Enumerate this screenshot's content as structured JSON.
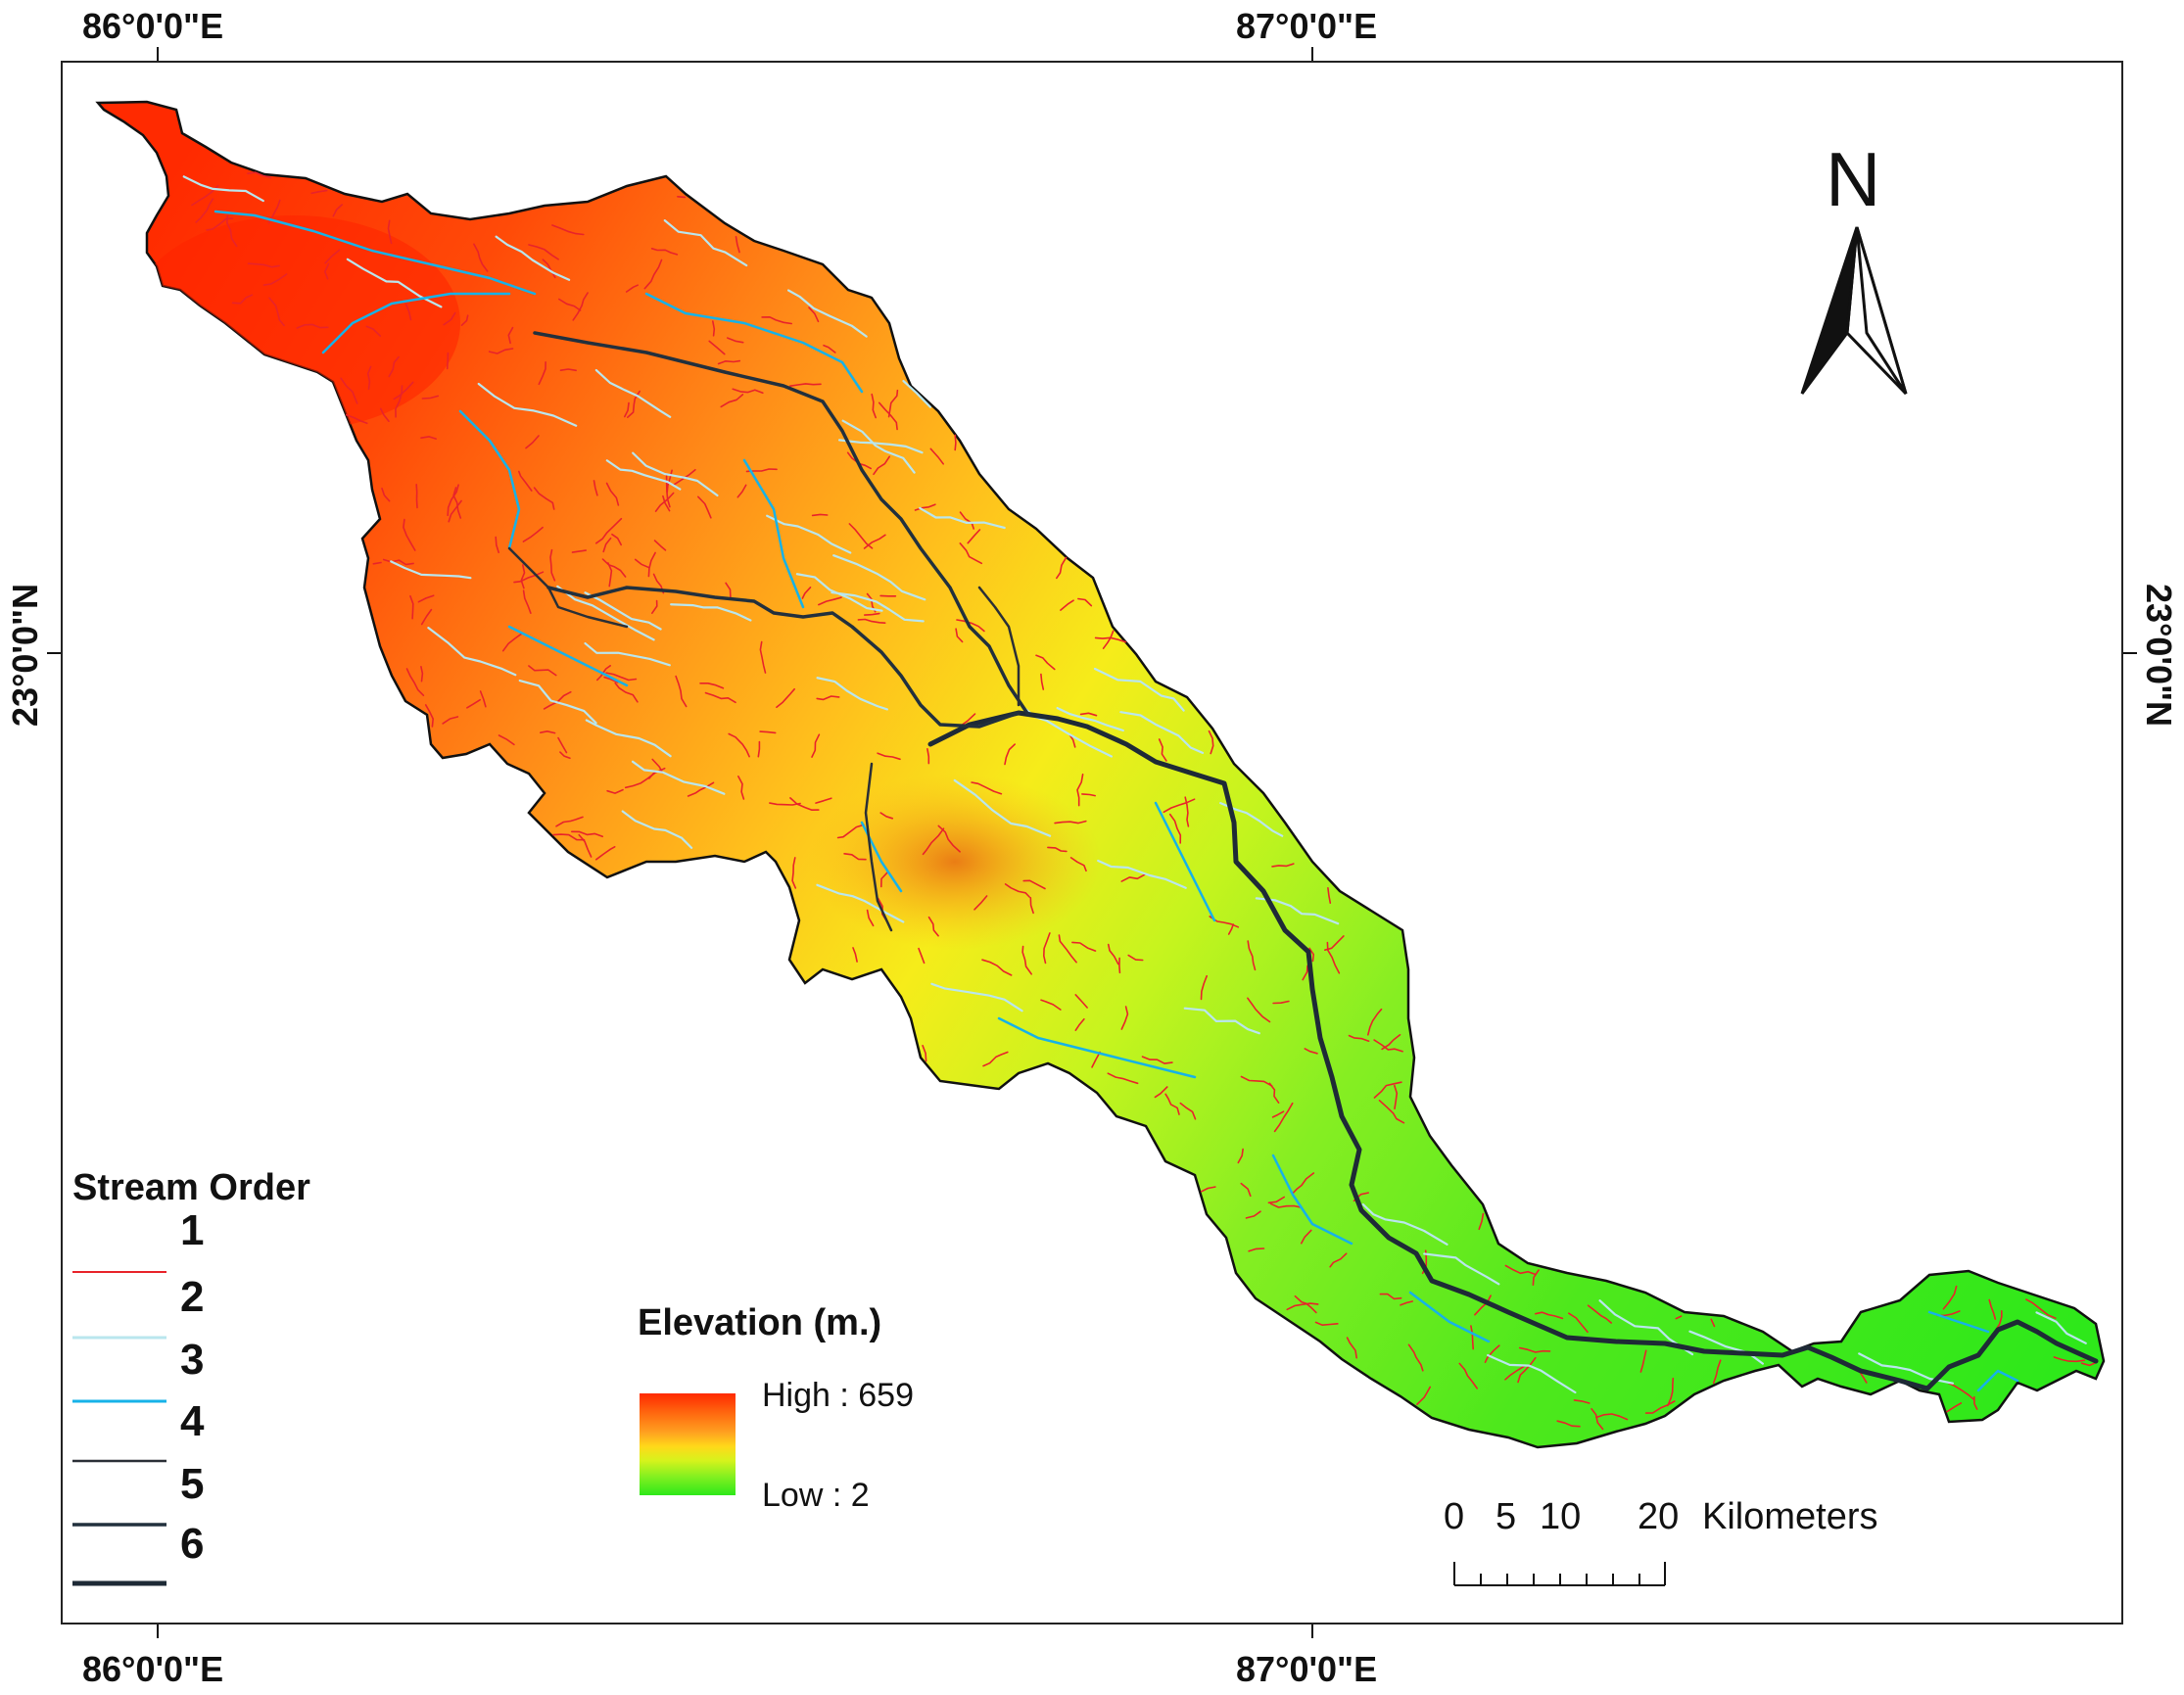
{
  "graticule": {
    "top_left_lon": "86°0'0\"E",
    "top_right_lon": "87°0'0\"E",
    "bottom_left_lon": "86°0'0\"E",
    "bottom_right_lon": "87°0'0\"E",
    "left_lat": "23°0'0\"N",
    "right_lat": "23°0'0\"N"
  },
  "north_arrow": {
    "label": "N",
    "icon": "north-arrow-icon"
  },
  "stream_legend": {
    "title": "Stream Order",
    "items": [
      {
        "label": "1",
        "color": "#e8232a"
      },
      {
        "label": "2",
        "color": "#b9e6ee"
      },
      {
        "label": "3",
        "color": "#16b2e8"
      },
      {
        "label": "4",
        "color": "#2a2f36"
      },
      {
        "label": "5",
        "color": "#22303d"
      },
      {
        "label": "6",
        "color": "#1e2a36"
      }
    ]
  },
  "elevation_legend": {
    "title": "Elevation (m.)",
    "high": "High : 659",
    "low": "Low : 2",
    "colors": [
      "#ff2a00",
      "#ffa020",
      "#ffd81a",
      "#2ee81a"
    ]
  },
  "scale_bar": {
    "labels": [
      "0",
      "5",
      "10",
      "20"
    ],
    "unit": "Kilometers"
  }
}
